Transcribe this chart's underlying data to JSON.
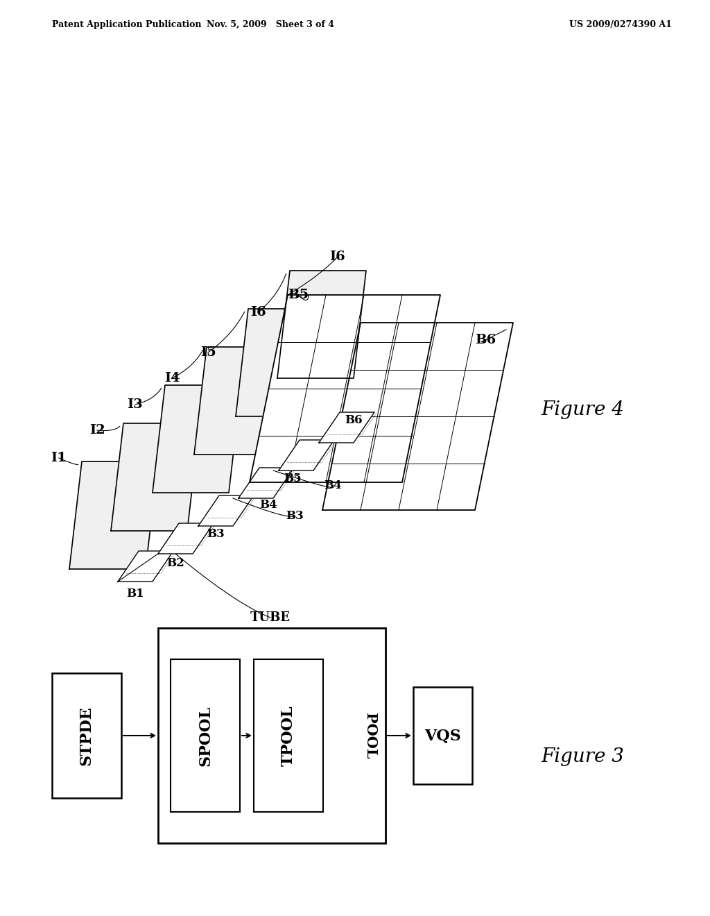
{
  "title_left": "Patent Application Publication",
  "title_mid": "Nov. 5, 2009   Sheet 3 of 4",
  "title_right": "US 2009/0274390 A1",
  "fig4_label": "Figure 4",
  "fig3_label": "Figure 3",
  "background_color": "#ffffff",
  "line_color": "#000000"
}
